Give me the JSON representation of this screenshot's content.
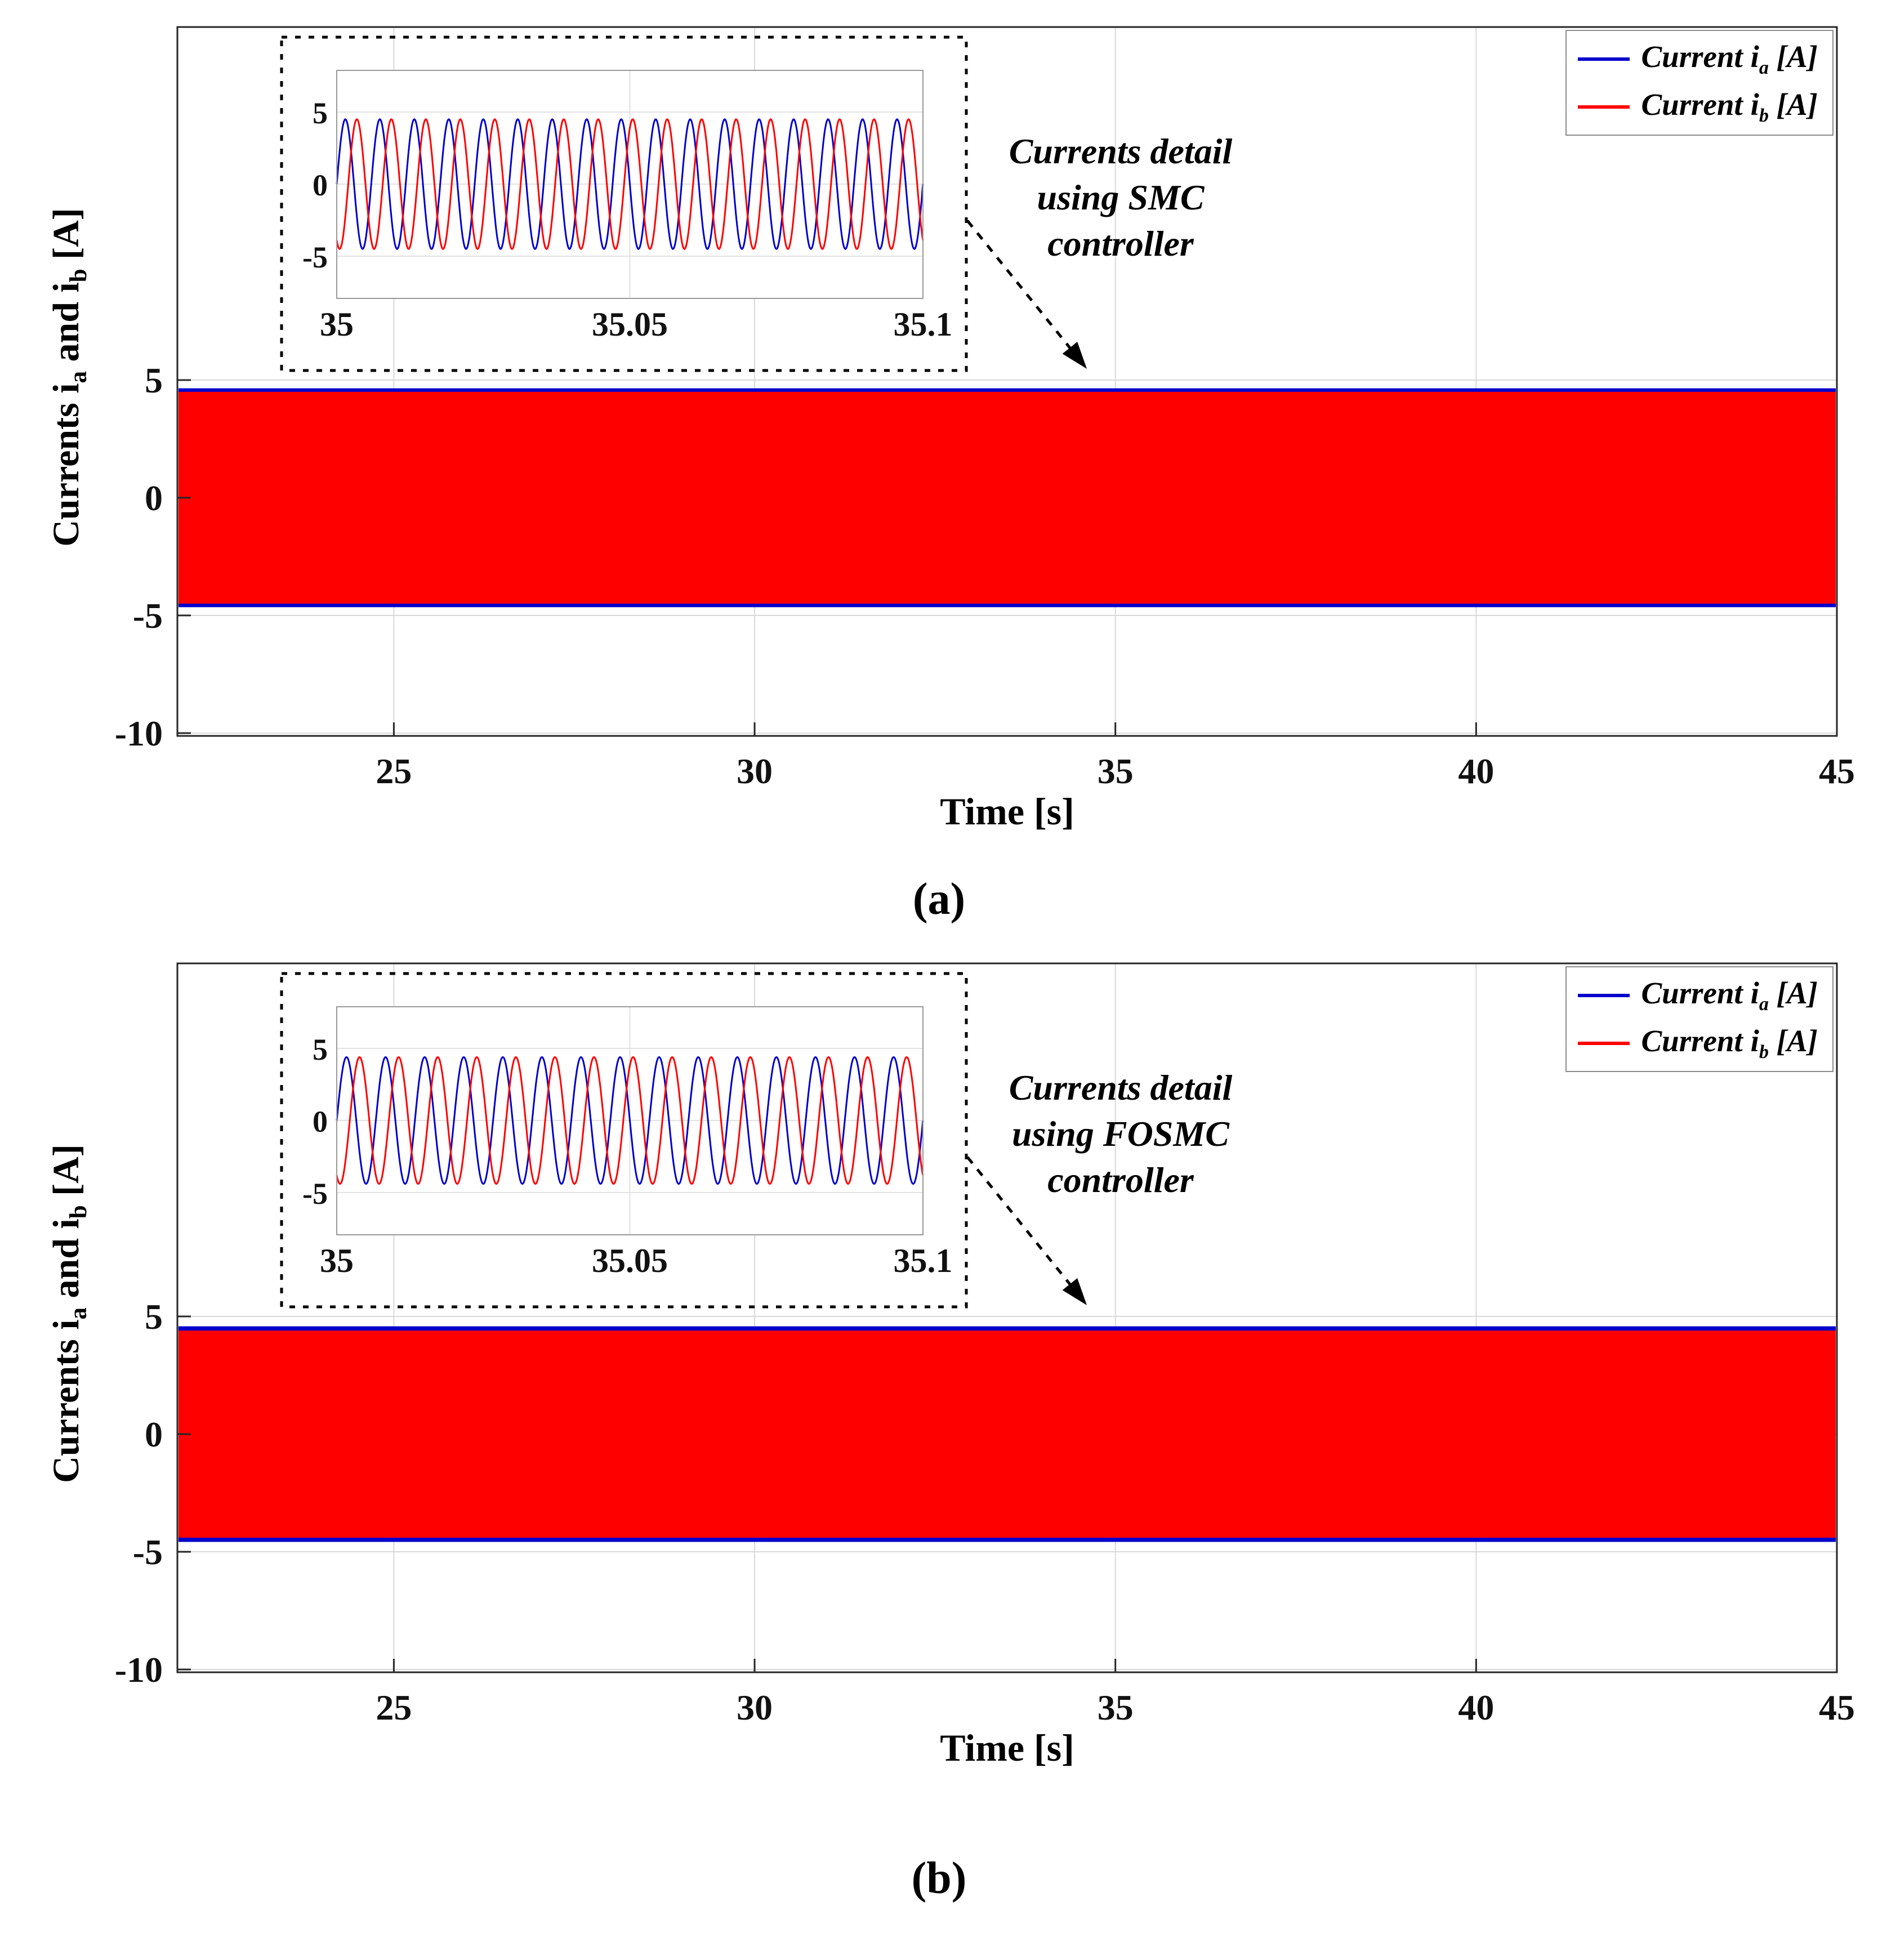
{
  "chart_data": [
    {
      "type": "line",
      "panel": "a",
      "caption": "(a)",
      "xlabel": "Time [s]",
      "ylabel": "Currents i_a and i_b [A]",
      "ylabel_parts": {
        "pre": "Currents i",
        "sub1": "a",
        "mid": " and i",
        "sub2": "b",
        "post": " [A]"
      },
      "xlim": [
        22,
        45
      ],
      "ylim": [
        -10,
        20
      ],
      "xticks": [
        25,
        30,
        35,
        40,
        45
      ],
      "yticks": [
        5,
        0,
        -5,
        -10
      ],
      "grid": true,
      "legend": {
        "position": "top-right",
        "items": [
          {
            "name": "ia",
            "pre": "Current i",
            "sub": "a",
            "post": " [A]",
            "color": "#0000CC"
          },
          {
            "name": "ib",
            "pre": "Current i",
            "sub": "b",
            "post": " [A]",
            "color": "#FF0000"
          }
        ]
      },
      "annotation": {
        "lines": [
          "Currents detail",
          "using SMC",
          "controller"
        ]
      },
      "band": {
        "inner_amplitude_A": 4.5,
        "outer_amplitude_A": 4.65,
        "fill_color": "#FF0000",
        "edge_color": "#0000CC"
      },
      "inset": {
        "xlim": [
          35,
          35.1
        ],
        "ylim": [
          -8,
          8
        ],
        "xticks": [
          "35",
          "35.05",
          "35.1"
        ],
        "yticks": [
          5,
          0,
          -5
        ],
        "series": [
          {
            "name": "Current i_a [A]",
            "color": "#0000CC",
            "amplitude_A": 4.5,
            "frequency_hz": 170,
            "phase_deg": 0
          },
          {
            "name": "Current i_b [A]",
            "color": "#FF0000",
            "amplitude_A": 4.5,
            "frequency_hz": 170,
            "phase_deg": -120
          }
        ]
      }
    },
    {
      "type": "line",
      "panel": "b",
      "caption": "(b)",
      "xlabel": "Time [s]",
      "ylabel": "Currents i_a and i_b [A]",
      "ylabel_parts": {
        "pre": "Currents i",
        "sub1": "a",
        "mid": " and i",
        "sub2": "b",
        "post": " [A]"
      },
      "xlim": [
        22,
        45
      ],
      "ylim": [
        -10,
        20
      ],
      "xticks": [
        25,
        30,
        35,
        40,
        45
      ],
      "yticks": [
        5,
        0,
        -5,
        -10
      ],
      "grid": true,
      "legend": {
        "position": "top-right",
        "items": [
          {
            "name": "ia",
            "pre": "Current i",
            "sub": "a",
            "post": " [A]",
            "color": "#0000CC"
          },
          {
            "name": "ib",
            "pre": "Current i",
            "sub": "b",
            "post": " [A]",
            "color": "#FF0000"
          }
        ]
      },
      "annotation": {
        "lines": [
          "Currents detail",
          "using FOSMC",
          "controller"
        ]
      },
      "band": {
        "inner_amplitude_A": 4.4,
        "outer_amplitude_A": 4.58,
        "fill_color": "#FF0000",
        "edge_color": "#0000CC"
      },
      "inset": {
        "xlim": [
          35,
          35.1
        ],
        "ylim": [
          -8,
          8
        ],
        "xticks": [
          "35",
          "35.05",
          "35.1"
        ],
        "yticks": [
          5,
          0,
          -5
        ],
        "series": [
          {
            "name": "Current i_a [A]",
            "color": "#0000CC",
            "amplitude_A": 4.4,
            "frequency_hz": 150,
            "phase_deg": 0
          },
          {
            "name": "Current i_b [A]",
            "color": "#FF0000",
            "amplitude_A": 4.4,
            "frequency_hz": 150,
            "phase_deg": -120
          }
        ]
      }
    }
  ]
}
